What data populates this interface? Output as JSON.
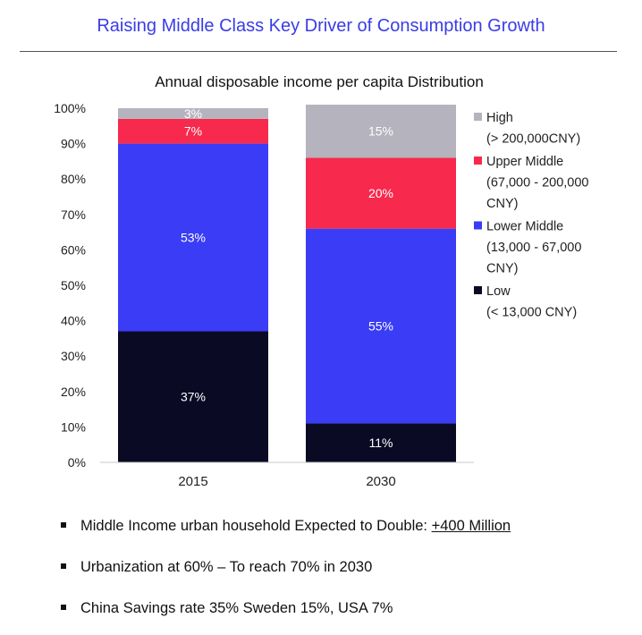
{
  "header": {
    "title": "Raising Middle Class Key Driver of Consumption Growth"
  },
  "chart_data": {
    "type": "bar",
    "stacked": true,
    "title": "Annual disposable income per capita Distribution",
    "categories": [
      "2015",
      "2030"
    ],
    "ylim": [
      0,
      100
    ],
    "yticks": [
      "0%",
      "10%",
      "20%",
      "30%",
      "40%",
      "50%",
      "60%",
      "70%",
      "80%",
      "90%",
      "100%"
    ],
    "series": [
      {
        "name": "Low",
        "range": "(< 13,000 CNY)",
        "color": "#0b0a25",
        "values": [
          37,
          11
        ],
        "labels": [
          "37%",
          "11%"
        ]
      },
      {
        "name": "Lower Middle",
        "range": "(13,000 - 67,000 CNY)",
        "color": "#3a3cf6",
        "values": [
          53,
          55
        ],
        "labels": [
          "53%",
          "55%"
        ]
      },
      {
        "name": "Upper Middle",
        "range": "(67,000 - 200,000 CNY)",
        "color": "#f7294d",
        "values": [
          7,
          20
        ],
        "labels": [
          "7%",
          "20%"
        ]
      },
      {
        "name": "High",
        "range": "(> 200,000CNY)",
        "color": "#b4b3be",
        "values": [
          3,
          15
        ],
        "labels": [
          "3%",
          "15%"
        ]
      }
    ],
    "legend": [
      {
        "lines": [
          "High",
          "(> 200,000CNY)"
        ],
        "color": "#b4b3be"
      },
      {
        "lines": [
          "Upper Middle",
          "(67,000 - 200,000",
          "CNY)"
        ],
        "color": "#f7294d"
      },
      {
        "lines": [
          "Lower Middle",
          "(13,000 - 67,000",
          "CNY)"
        ],
        "color": "#3a3cf6"
      },
      {
        "lines": [
          "Low",
          "(< 13,000 CNY)"
        ],
        "color": "#0b0a25"
      }
    ],
    "legend_position": "right",
    "grid": false
  },
  "bullets": [
    {
      "text": "Middle Income urban household Expected to Double: ",
      "emphasis": "+400 Million"
    },
    {
      "text": "Urbanization at 60% – To reach 70% in 2030",
      "emphasis": ""
    },
    {
      "text": "China Savings rate 35% Sweden 15%, USA 7%",
      "emphasis": ""
    }
  ]
}
